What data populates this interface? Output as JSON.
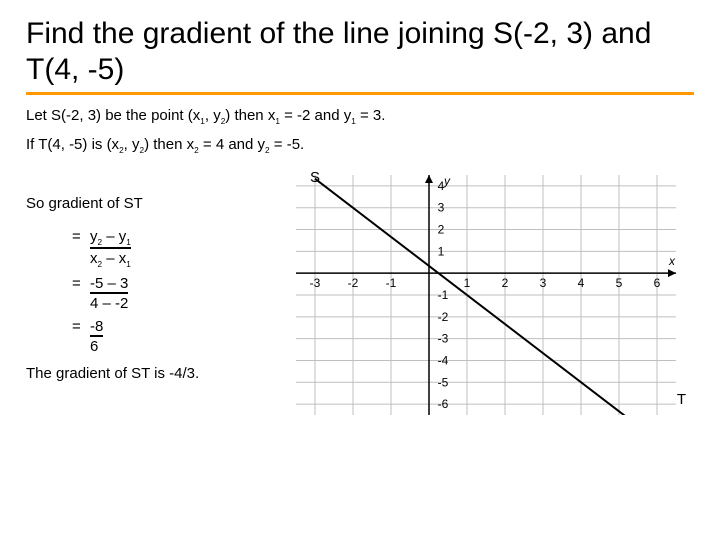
{
  "title": "Find the gradient of the line joining S(-2, 3) and T(4, -5)",
  "line1_a": "Let S(-2, 3) be the point (x",
  "line1_b": ", y",
  "line1_c": ") then x",
  "line1_d": " = -2 and y",
  "line1_e": " = 3.",
  "line2_a": "If T(4, -5) is (x",
  "line2_b": ", y",
  "line2_c": ") then x",
  "line2_d": " = 4 and y",
  "line2_e": " = -5.",
  "so_gradient": "So gradient of ST",
  "eq": "=",
  "frac1_num_a": " y",
  "frac1_num_b": " – y",
  "frac1_den_a": " x",
  "frac1_den_b": " – x",
  "frac2_num": " -5 – 3",
  "frac2_den": "  4 – -2",
  "frac3_num": " -8",
  "frac3_den": "  6",
  "conclusion": "The gradient of ST is -4/3.",
  "s_label": "S",
  "t_label": "T",
  "graph": {
    "x_ticks": [
      -3,
      -2,
      -1,
      1,
      2,
      3,
      4,
      5,
      6
    ],
    "y_ticks_pos": [
      1,
      2,
      3,
      4
    ],
    "y_ticks_neg": [
      -1,
      -2,
      -3,
      -4,
      -5,
      -6
    ],
    "x_axis_label": "x",
    "y_axis_label": "y",
    "x_range": [
      -3.5,
      6.5
    ],
    "y_range": [
      -6.5,
      4.5
    ],
    "line_points": [
      [
        -3,
        4.33
      ],
      [
        6.5,
        -8.33
      ]
    ],
    "line_color": "#000000",
    "axis_color": "#000000",
    "grid_color": "#bfbfbf",
    "point_s": [
      -2,
      3
    ],
    "point_t": [
      4,
      -5
    ]
  }
}
